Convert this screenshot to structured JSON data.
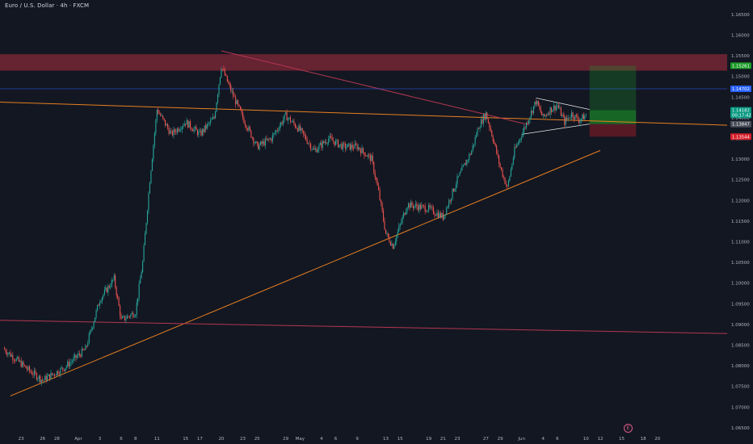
{
  "header": {
    "symbol_title": "Euro / U.S. Dollar · 4h · FXCM"
  },
  "events_badge": {
    "label": "E"
  },
  "colors": {
    "background": "#131722",
    "axis_text": "#b2b5be",
    "candle_up": "#26a69a",
    "candle_down": "#ef5350",
    "orange_line": "#e8801f",
    "pink_line": "#b43750",
    "resistance_zone": "#8a2a39",
    "price_tag_green": "#1d9c2a",
    "price_tag_blue": "#2962ff",
    "price_tag_teal": "#089981",
    "price_tag_grey": "#4a4e59",
    "price_tag_red": "#d71f2a"
  },
  "chart_data": {
    "type": "candlestick",
    "y_ticks": [
      "1.16500",
      "1.16000",
      "1.15500",
      "1.15000",
      "1.14500",
      "1.14000",
      "1.13500",
      "1.13000",
      "1.12500",
      "1.12000",
      "1.11500",
      "1.11000",
      "1.10500",
      "1.10000",
      "1.09500",
      "1.09000",
      "1.08500",
      "1.08000",
      "1.07500",
      "1.07000",
      "1.06500"
    ],
    "ylim": [
      1.064,
      1.1685
    ],
    "x_ticks": [
      {
        "label": "23",
        "d": -11
      },
      {
        "label": "26",
        "d": -8
      },
      {
        "label": "28",
        "d": -6
      },
      {
        "label": "Apr",
        "d": -3
      },
      {
        "label": "3",
        "d": 0
      },
      {
        "label": "6",
        "d": 3
      },
      {
        "label": "8",
        "d": 5
      },
      {
        "label": "11",
        "d": 8
      },
      {
        "label": "15",
        "d": 12
      },
      {
        "label": "17",
        "d": 14
      },
      {
        "label": "20",
        "d": 17
      },
      {
        "label": "23",
        "d": 20
      },
      {
        "label": "25",
        "d": 22
      },
      {
        "label": "29",
        "d": 26
      },
      {
        "label": "May",
        "d": 28
      },
      {
        "label": "4",
        "d": 31
      },
      {
        "label": "6",
        "d": 33
      },
      {
        "label": "9",
        "d": 36
      },
      {
        "label": "13",
        "d": 40
      },
      {
        "label": "15",
        "d": 42
      },
      {
        "label": "19",
        "d": 46
      },
      {
        "label": "21",
        "d": 48
      },
      {
        "label": "23",
        "d": 50
      },
      {
        "label": "27",
        "d": 54
      },
      {
        "label": "29",
        "d": 56
      },
      {
        "label": "Jun",
        "d": 59
      },
      {
        "label": "4",
        "d": 62
      },
      {
        "label": "6",
        "d": 64
      },
      {
        "label": "10",
        "d": 68
      },
      {
        "label": "12",
        "d": 70
      },
      {
        "label": "15",
        "d": 73
      },
      {
        "label": "18",
        "d": 76
      },
      {
        "label": "20",
        "d": 78
      }
    ],
    "price_tags": [
      {
        "label": "1.15261",
        "value": 1.15261,
        "color": "price_tag_green"
      },
      {
        "label": "1.14702",
        "value": 1.14702,
        "color": "price_tag_blue"
      },
      {
        "label": "1.14182",
        "value": 1.14182,
        "color": "price_tag_teal"
      },
      {
        "label": "00:17:42",
        "value": 1.14069,
        "color": "price_tag_teal"
      },
      {
        "label": "1.13847",
        "value": 1.13847,
        "color": "price_tag_grey"
      },
      {
        "label": "1.13544",
        "value": 1.13544,
        "color": "price_tag_red"
      }
    ],
    "zones": [
      {
        "name": "resistance",
        "d_from": -14,
        "d_to": "edge",
        "top": 1.1554,
        "bottom": 1.1514,
        "color": "resistance_zone",
        "opacity": 0.7
      },
      {
        "name": "target",
        "d_from": 68.5,
        "d_to": 75,
        "top": 1.15261,
        "bottom": 1.13847,
        "color": "price_tag_green",
        "opacity": 0.28
      },
      {
        "name": "target-strong",
        "d_from": 68.5,
        "d_to": 75,
        "top": 1.14182,
        "bottom": 1.13847,
        "color": "price_tag_green",
        "opacity": 0.45
      },
      {
        "name": "stop",
        "d_from": 68.5,
        "d_to": 75,
        "top": 1.13847,
        "bottom": 1.13544,
        "color": "price_tag_red",
        "opacity": 0.35
      }
    ],
    "lines": [
      {
        "name": "long-orange-support",
        "d1": -12.5,
        "v1": 1.0727,
        "d2": 70,
        "v2": 1.1321,
        "color": "orange_line",
        "width": 1
      },
      {
        "name": "horizontal-orange",
        "d1": -14,
        "v1": 1.1438,
        "d2": "edge",
        "v2": 1.1382,
        "color": "orange_line",
        "width": 1
      },
      {
        "name": "pink-descending",
        "d1": 17,
        "v1": 1.1562,
        "d2": 60,
        "v2": 1.1383,
        "color": "pink_line",
        "width": 1
      },
      {
        "name": "pink-lower",
        "d1": -14,
        "v1": 1.091,
        "d2": "edge",
        "v2": 1.0878,
        "color": "pink_line",
        "width": 1
      },
      {
        "name": "blue-horizontal",
        "d1": -14,
        "v1": 1.14702,
        "d2": "edge",
        "v2": 1.14702,
        "color": "price_tag_blue",
        "width": 0.5
      },
      {
        "name": "triangle-upper",
        "d1": 61,
        "v1": 1.1448,
        "d2": 68.5,
        "v2": 1.142,
        "color": "#e6e6e6",
        "width": 0.8
      },
      {
        "name": "triangle-lower",
        "d1": 59,
        "v1": 1.136,
        "d2": 68.5,
        "v2": 1.1385,
        "color": "#e6e6e6",
        "width": 0.8
      }
    ],
    "anchors": [
      {
        "d": -13.5,
        "v": 1.0842
      },
      {
        "d": -10,
        "v": 1.079
      },
      {
        "d": -8,
        "v": 1.0765
      },
      {
        "d": -5,
        "v": 1.0795
      },
      {
        "d": -2,
        "v": 1.084
      },
      {
        "d": 0,
        "v": 1.096
      },
      {
        "d": 2,
        "v": 1.101
      },
      {
        "d": 3,
        "v": 1.091
      },
      {
        "d": 5,
        "v": 1.093
      },
      {
        "d": 6,
        "v": 1.105
      },
      {
        "d": 7,
        "v": 1.125
      },
      {
        "d": 8,
        "v": 1.142
      },
      {
        "d": 10,
        "v": 1.136
      },
      {
        "d": 12,
        "v": 1.139
      },
      {
        "d": 14,
        "v": 1.136
      },
      {
        "d": 16,
        "v": 1.14
      },
      {
        "d": 17,
        "v": 1.1525
      },
      {
        "d": 18,
        "v": 1.148
      },
      {
        "d": 20,
        "v": 1.14
      },
      {
        "d": 22,
        "v": 1.133
      },
      {
        "d": 24,
        "v": 1.135
      },
      {
        "d": 26,
        "v": 1.1405
      },
      {
        "d": 28,
        "v": 1.137
      },
      {
        "d": 30,
        "v": 1.132
      },
      {
        "d": 32,
        "v": 1.135
      },
      {
        "d": 34,
        "v": 1.133
      },
      {
        "d": 36,
        "v": 1.133
      },
      {
        "d": 38,
        "v": 1.13
      },
      {
        "d": 39,
        "v": 1.122
      },
      {
        "d": 40,
        "v": 1.112
      },
      {
        "d": 41,
        "v": 1.109
      },
      {
        "d": 43,
        "v": 1.119
      },
      {
        "d": 46,
        "v": 1.118
      },
      {
        "d": 48,
        "v": 1.116
      },
      {
        "d": 50,
        "v": 1.125
      },
      {
        "d": 52,
        "v": 1.132
      },
      {
        "d": 53,
        "v": 1.138
      },
      {
        "d": 54,
        "v": 1.141
      },
      {
        "d": 55,
        "v": 1.135
      },
      {
        "d": 56,
        "v": 1.128
      },
      {
        "d": 57,
        "v": 1.123
      },
      {
        "d": 58,
        "v": 1.132
      },
      {
        "d": 59,
        "v": 1.136
      },
      {
        "d": 60,
        "v": 1.14
      },
      {
        "d": 61,
        "v": 1.144
      },
      {
        "d": 62,
        "v": 1.14
      },
      {
        "d": 63,
        "v": 1.142
      },
      {
        "d": 64,
        "v": 1.143
      },
      {
        "d": 65,
        "v": 1.139
      },
      {
        "d": 66,
        "v": 1.141
      },
      {
        "d": 67,
        "v": 1.1395
      },
      {
        "d": 68,
        "v": 1.1405
      }
    ]
  }
}
